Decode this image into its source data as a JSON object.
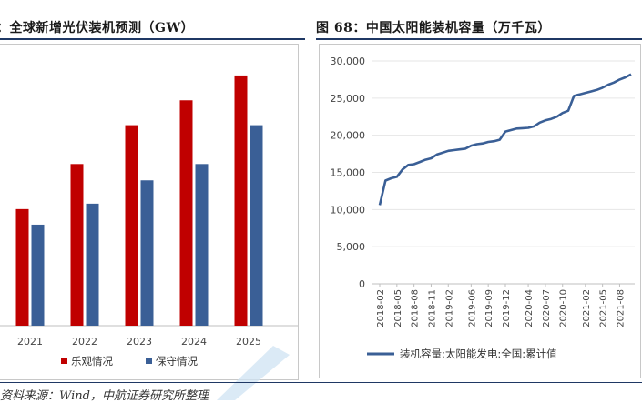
{
  "left_title": "：全球新增光伏装机预测（GW）",
  "right_title": "图 68：中国太阳能装机容量（万千瓦）",
  "source": "资料来源：Wind，中航证券研究所整理",
  "colors": {
    "optimistic": "#c00000",
    "conservative": "#3a5f96",
    "line": "#3a5f96",
    "rule": "#1f3864"
  },
  "chart_data": [
    {
      "type": "bar",
      "title": "全球新增光伏装机预测（GW）",
      "categories": [
        "2021",
        "2022",
        "2023",
        "2024",
        "2025"
      ],
      "series": [
        {
          "name": "乐观情况",
          "values": [
            150,
            208,
            258,
            290,
            322
          ]
        },
        {
          "name": "保守情况",
          "values": [
            130,
            157,
            187,
            208,
            258
          ]
        }
      ],
      "ylim": [
        0,
        350
      ],
      "legend": "bottom"
    },
    {
      "type": "line",
      "title": "中国太阳能装机容量（万千瓦）",
      "ylim": [
        0,
        30000
      ],
      "yticks": [
        "0",
        "5,000",
        "10,000",
        "15,000",
        "20,000",
        "25,000",
        "30,000"
      ],
      "xticks": [
        "2018-02",
        "2018-05",
        "2018-08",
        "2018-11",
        "2019-02",
        "2019-06",
        "2019-09",
        "2019-12",
        "2020-04",
        "2020-07",
        "2020-10",
        "2021-02",
        "2021-05",
        "2021-08"
      ],
      "series": [
        {
          "name": "装机容量:太阳能发电:全国:累计值",
          "x": [
            "2018-02",
            "2018-03",
            "2018-04",
            "2018-05",
            "2018-06",
            "2018-07",
            "2018-08",
            "2018-09",
            "2018-10",
            "2018-11",
            "2018-12",
            "2019-02",
            "2019-03",
            "2019-04",
            "2019-05",
            "2019-06",
            "2019-07",
            "2019-08",
            "2019-09",
            "2019-10",
            "2019-11",
            "2019-12",
            "2020-02",
            "2020-03",
            "2020-04",
            "2020-05",
            "2020-06",
            "2020-07",
            "2020-08",
            "2020-09",
            "2020-10",
            "2020-11",
            "2020-12",
            "2021-02",
            "2021-03",
            "2021-04",
            "2021-05",
            "2021-06",
            "2021-07",
            "2021-08",
            "2021-09",
            "2021-10"
          ],
          "values": [
            10600,
            13900,
            14200,
            14400,
            15400,
            16000,
            16100,
            16400,
            16700,
            16900,
            17400,
            17900,
            18000,
            18100,
            18200,
            18600,
            18800,
            18900,
            19100,
            19200,
            19400,
            20500,
            20900,
            20950,
            21000,
            21200,
            21700,
            22000,
            22200,
            22500,
            23000,
            23300,
            25300,
            25700,
            25900,
            26100,
            26400,
            26800,
            27100,
            27500,
            27800,
            28200
          ]
        }
      ],
      "legend": "bottom"
    }
  ]
}
